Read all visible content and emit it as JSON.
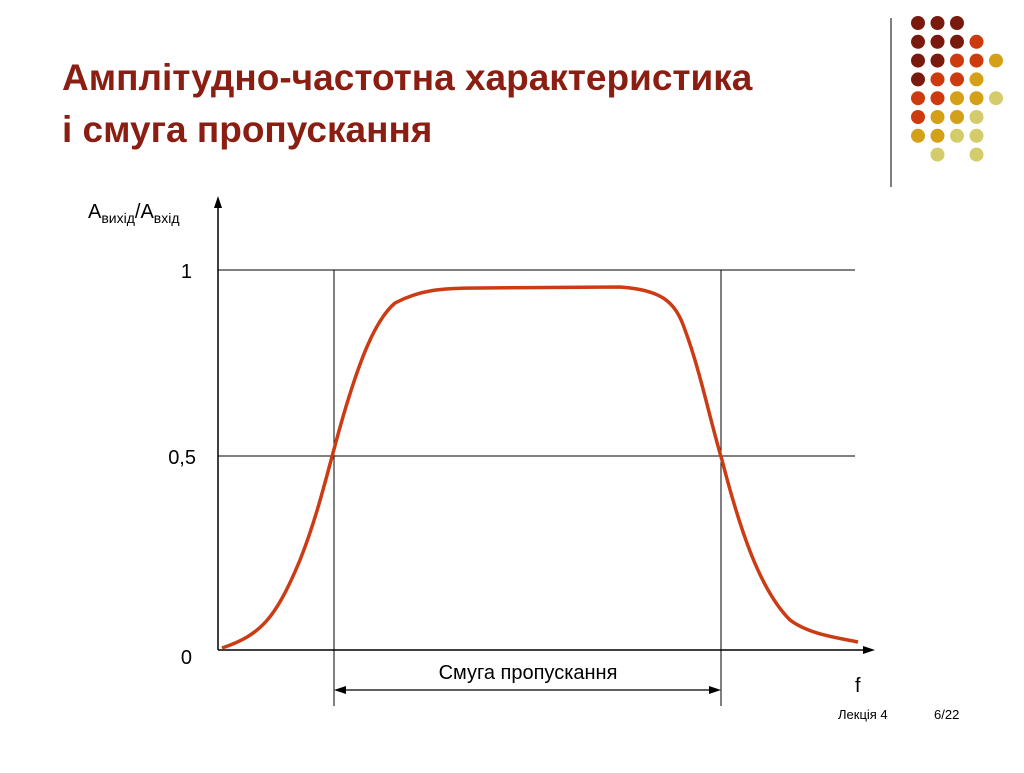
{
  "header": {
    "title_lines": [
      "Амплітудно-частотна характеристика",
      "і смуга пропускання"
    ]
  },
  "diagram": {
    "y_axis_label": {
      "main": "A",
      "sub1": "вихід",
      "sep": "/A",
      "sub2": "вхід"
    },
    "y_labels": [
      "1",
      "0,5",
      "0"
    ],
    "x_axis_label": "f",
    "band_label": "Смуга пропускання"
  },
  "footer": {
    "lecture": "Лекція 4",
    "page": "6/22"
  }
}
